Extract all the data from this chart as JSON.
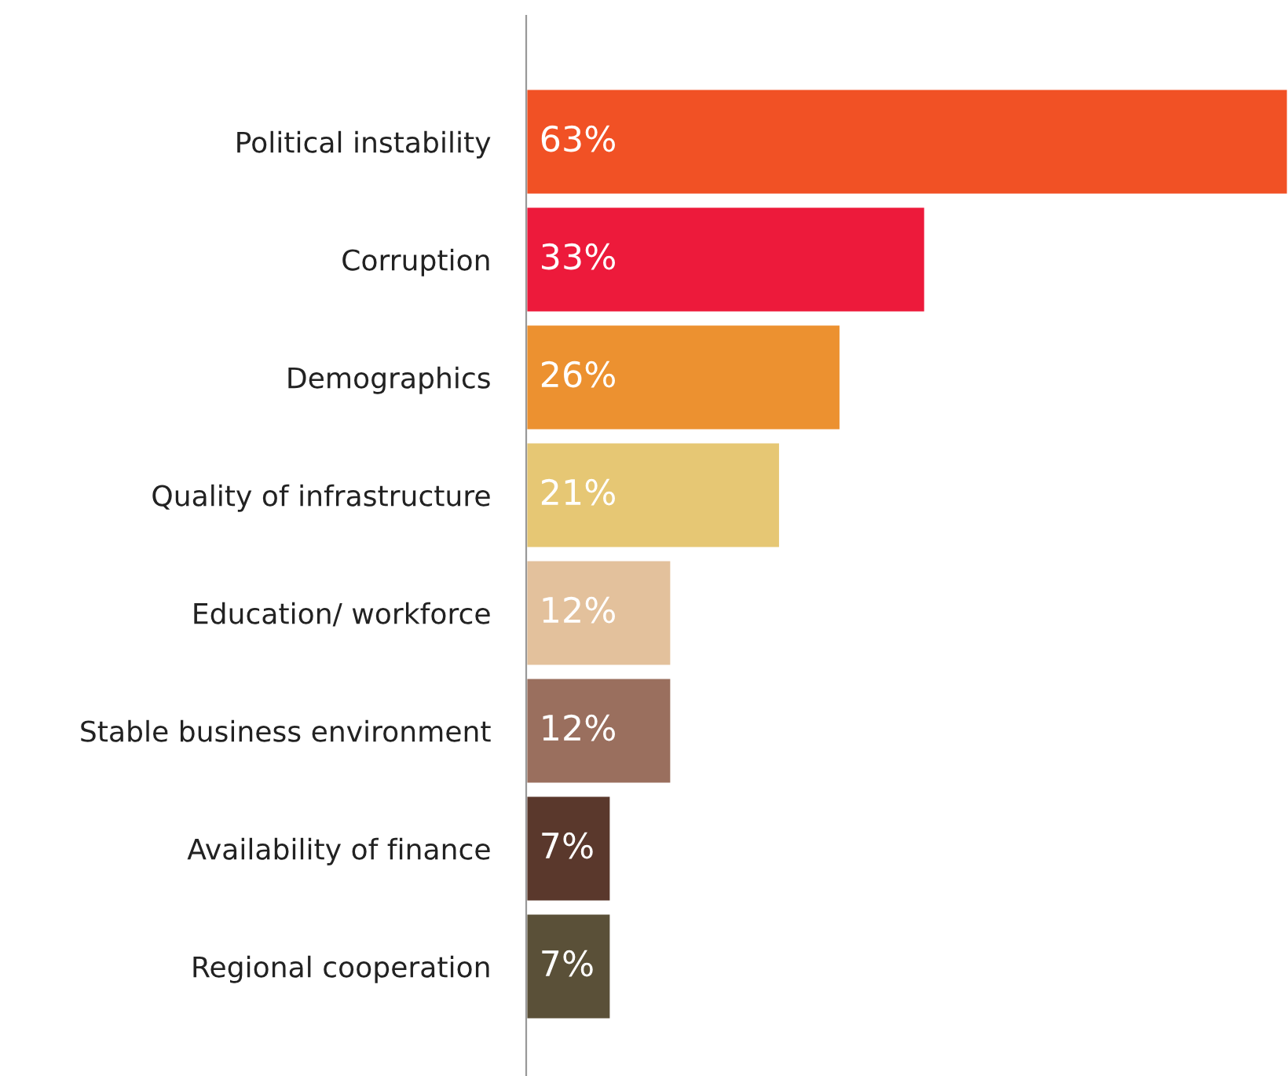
{
  "chart_data": {
    "type": "bar",
    "orientation": "horizontal",
    "categories": [
      "Political instability",
      "Corruption",
      "Demographics",
      "Quality of infrastructure",
      "Education/ workforce",
      "Stable business environment",
      "Availability of finance",
      "Regional cooperation"
    ],
    "values": [
      63,
      33,
      26,
      21,
      12,
      12,
      7,
      7
    ],
    "colors": [
      "#f15125",
      "#ed1a3b",
      "#ec9130",
      "#e6c774",
      "#e3c19c",
      "#9a6f5e",
      "#5a382c",
      "#5a5038"
    ],
    "value_labels": [
      "63%",
      "33%",
      "26%",
      "21%",
      "12%",
      "12%",
      "7%",
      "7%"
    ],
    "grid": false,
    "legend": false
  }
}
